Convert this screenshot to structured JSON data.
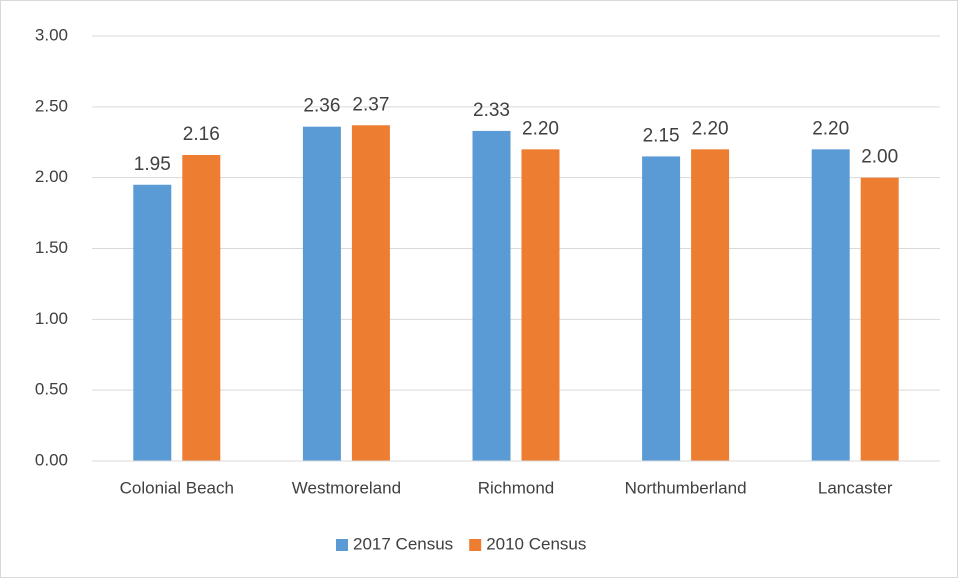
{
  "chart_data": {
    "type": "bar",
    "categories": [
      "Colonial Beach",
      "Westmoreland",
      "Richmond",
      "Northumberland",
      "Lancaster"
    ],
    "series": [
      {
        "name": "2017 Census",
        "color": "#5b9bd5",
        "values": [
          1.95,
          2.36,
          2.33,
          2.15,
          2.2
        ],
        "value_labels": [
          "1.95",
          "2.36",
          "2.33",
          "2.15",
          "2.20"
        ]
      },
      {
        "name": "2010 Census",
        "color": "#ed7d31",
        "values": [
          2.16,
          2.37,
          2.2,
          2.2,
          2.0
        ],
        "value_labels": [
          "2.16",
          "2.37",
          "2.20",
          "2.20",
          "2.00"
        ]
      }
    ],
    "ylim": [
      0,
      3
    ],
    "yticks": [
      {
        "value": 0,
        "label": "0.00"
      },
      {
        "value": 0.5,
        "label": "0.50"
      },
      {
        "value": 1,
        "label": "1.00"
      },
      {
        "value": 1.5,
        "label": "1.50"
      },
      {
        "value": 2,
        "label": "2.00"
      },
      {
        "value": 2.5,
        "label": "2.50"
      },
      {
        "value": 3,
        "label": "3.00"
      }
    ],
    "grid": true,
    "legend": "bottom"
  }
}
